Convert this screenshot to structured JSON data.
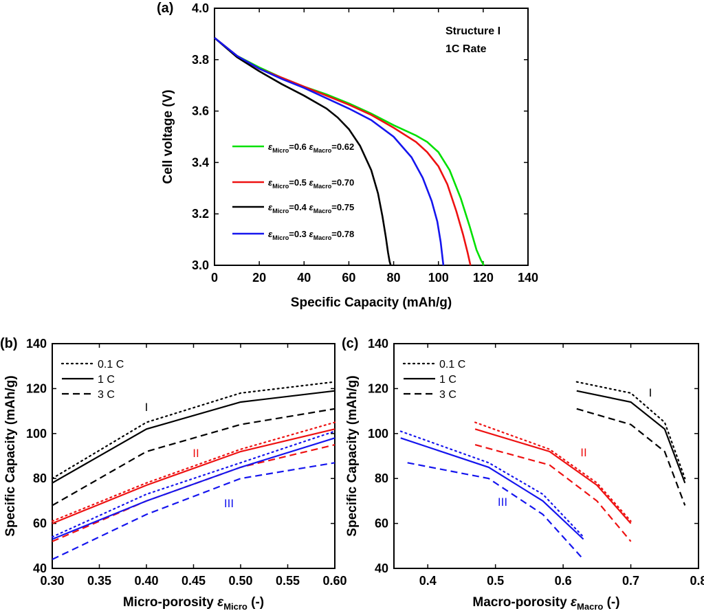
{
  "figure": {
    "panels": [
      {
        "id": "a",
        "label": "(a)",
        "xlabel": "Specific Capacity (mAh/g)",
        "ylabel": "Cell voltage (V)",
        "xlim": [
          0,
          140
        ],
        "ylim": [
          3.0,
          4.0
        ],
        "xticks": [
          "0",
          "20",
          "40",
          "60",
          "80",
          "100",
          "120",
          "140"
        ],
        "yticks": [
          "3.0",
          "3.2",
          "3.4",
          "3.6",
          "3.8",
          "4.0"
        ],
        "note_lines": [
          "Structure I",
          "1C Rate"
        ],
        "legend": [
          {
            "color": "#00e000",
            "micro": "0.6",
            "macro": "0.62"
          },
          {
            "color": "#ee1111",
            "micro": "0.5",
            "macro": "0.70"
          },
          {
            "color": "#000000",
            "micro": "0.4",
            "macro": "0.75"
          },
          {
            "color": "#1515ee",
            "micro": "0.3",
            "macro": "0.78"
          }
        ],
        "legend_symbol": "ε",
        "legend_sub_micro": "Micro",
        "legend_sub_macro": "Macro"
      },
      {
        "id": "b",
        "label": "(b)",
        "xlabel_main": "Micro-porosity ",
        "xlabel_symbol": "ε",
        "xlabel_sub": "Micro",
        "xlabel_tail": "  (-)",
        "ylabel": "Specific Capacity (mAh/g)",
        "xlim": [
          0.3,
          0.6
        ],
        "ylim": [
          40,
          140
        ],
        "xticks": [
          "0.30",
          "0.35",
          "0.40",
          "0.45",
          "0.50",
          "0.55",
          "0.60"
        ],
        "yticks": [
          "40",
          "60",
          "80",
          "100",
          "120",
          "140"
        ],
        "legend": [
          "0.1 C",
          "1 C",
          "3 C"
        ],
        "group_labels": [
          {
            "text": "I",
            "color": "#000000"
          },
          {
            "text": "II",
            "color": "#ee1111"
          },
          {
            "text": "III",
            "color": "#1515ee"
          }
        ]
      },
      {
        "id": "c",
        "label": "(c)",
        "xlabel_main": "Macro-porosity ",
        "xlabel_symbol": "ε",
        "xlabel_sub": "Macro",
        "xlabel_tail": " (-)",
        "ylabel": "Specific Capacity (mAh/g)",
        "xlim": [
          0.35,
          0.8
        ],
        "ylim": [
          40,
          140
        ],
        "xticks": [
          "0.4",
          "0.5",
          "0.6",
          "0.7",
          "0.8"
        ],
        "yticks": [
          "40",
          "60",
          "80",
          "100",
          "120",
          "140"
        ],
        "legend": [
          "0.1 C",
          "1 C",
          "3 C"
        ],
        "group_labels": [
          {
            "text": "I",
            "color": "#000000"
          },
          {
            "text": "II",
            "color": "#ee1111"
          },
          {
            "text": "III",
            "color": "#1515ee"
          }
        ]
      }
    ]
  },
  "chart_data": [
    {
      "panel": "a",
      "type": "line",
      "title": "",
      "xlabel": "Specific Capacity (mAh/g)",
      "ylabel": "Cell voltage (V)",
      "xlim": [
        0,
        140
      ],
      "ylim": [
        3.0,
        4.0
      ],
      "series": [
        {
          "name": "εMicro=0.6 εMacro=0.62",
          "color": "#00e000",
          "x": [
            0,
            10,
            20,
            30,
            40,
            50,
            60,
            70,
            80,
            90,
            95,
            100,
            105,
            110,
            114,
            117,
            119,
            120.3
          ],
          "y": [
            3.885,
            3.815,
            3.77,
            3.73,
            3.695,
            3.665,
            3.63,
            3.59,
            3.545,
            3.505,
            3.48,
            3.44,
            3.37,
            3.26,
            3.15,
            3.06,
            3.02,
            3.0
          ]
        },
        {
          "name": "εMicro=0.5 εMacro=0.70",
          "color": "#ee1111",
          "x": [
            0,
            10,
            20,
            30,
            40,
            50,
            60,
            70,
            80,
            90,
            95,
            100,
            104,
            108,
            111,
            113,
            114.3
          ],
          "y": [
            3.885,
            3.815,
            3.765,
            3.73,
            3.695,
            3.66,
            3.625,
            3.585,
            3.535,
            3.48,
            3.44,
            3.385,
            3.315,
            3.21,
            3.12,
            3.05,
            3.0
          ]
        },
        {
          "name": "εMicro=0.4 εMacro=0.75",
          "color": "#000000",
          "x": [
            0,
            10,
            20,
            30,
            40,
            50,
            55,
            60,
            65,
            70,
            73,
            75,
            76.5,
            77.5,
            78.2,
            78.7
          ],
          "y": [
            3.885,
            3.81,
            3.755,
            3.705,
            3.66,
            3.61,
            3.575,
            3.53,
            3.465,
            3.37,
            3.28,
            3.19,
            3.11,
            3.05,
            3.015,
            3.0
          ]
        },
        {
          "name": "εMicro=0.3 εMacro=0.78",
          "color": "#1515ee",
          "x": [
            0,
            10,
            20,
            30,
            40,
            50,
            60,
            70,
            80,
            88,
            93,
            97,
            99.5,
            101,
            101.8,
            102.2
          ],
          "y": [
            3.885,
            3.815,
            3.765,
            3.725,
            3.69,
            3.65,
            3.61,
            3.565,
            3.5,
            3.42,
            3.34,
            3.25,
            3.17,
            3.09,
            3.03,
            3.0
          ]
        }
      ]
    },
    {
      "panel": "b",
      "type": "line",
      "title": "",
      "xlabel": "Micro-porosity εMicro  (-)",
      "ylabel": "Specific Capacity (mAh/g)",
      "xlim": [
        0.3,
        0.6
      ],
      "ylim": [
        40,
        140
      ],
      "x": [
        0.3,
        0.4,
        0.5,
        0.6
      ],
      "series": [
        {
          "name": "I, 0.1 C",
          "group": "I",
          "rate": "0.1 C",
          "color": "#000000",
          "dash": "dot",
          "values": [
            80,
            105,
            118,
            123
          ]
        },
        {
          "name": "I, 1 C",
          "group": "I",
          "rate": "1 C",
          "color": "#000000",
          "dash": "solid",
          "values": [
            78,
            102,
            114,
            119
          ]
        },
        {
          "name": "I, 3 C",
          "group": "I",
          "rate": "3 C",
          "color": "#000000",
          "dash": "dash",
          "values": [
            68,
            92,
            104,
            111
          ]
        },
        {
          "name": "II, 0.1 C",
          "group": "II",
          "rate": "0.1 C",
          "color": "#ee1111",
          "dash": "dot",
          "values": [
            61,
            78,
            93,
            105
          ]
        },
        {
          "name": "II, 1 C",
          "group": "II",
          "rate": "1 C",
          "color": "#ee1111",
          "dash": "solid",
          "values": [
            60,
            77,
            92,
            102
          ]
        },
        {
          "name": "II, 3 C",
          "group": "II",
          "rate": "3 C",
          "color": "#ee1111",
          "dash": "dash",
          "values": [
            52,
            70,
            85,
            95
          ]
        },
        {
          "name": "III, 0.1 C",
          "group": "III",
          "rate": "0.1 C",
          "color": "#1515ee",
          "dash": "dot",
          "values": [
            54,
            73,
            87,
            101
          ]
        },
        {
          "name": "III, 1 C",
          "group": "III",
          "rate": "1 C",
          "color": "#1515ee",
          "dash": "solid",
          "values": [
            53,
            70,
            85,
            98
          ]
        },
        {
          "name": "III, 3 C",
          "group": "III",
          "rate": "3 C",
          "color": "#1515ee",
          "dash": "dash",
          "values": [
            44,
            64,
            80,
            87
          ]
        }
      ]
    },
    {
      "panel": "c",
      "type": "line",
      "title": "",
      "xlabel": "Macro-porosity εMacro (-)",
      "ylabel": "Specific Capacity (mAh/g)",
      "xlim": [
        0.35,
        0.8
      ],
      "ylim": [
        40,
        140
      ],
      "series": [
        {
          "name": "I, 0.1 C",
          "group": "I",
          "rate": "0.1 C",
          "color": "#000000",
          "dash": "dot",
          "x": [
            0.62,
            0.7,
            0.75,
            0.78
          ],
          "values": [
            123,
            118,
            105,
            80
          ]
        },
        {
          "name": "I, 1 C",
          "group": "I",
          "rate": "1 C",
          "color": "#000000",
          "dash": "solid",
          "x": [
            0.62,
            0.7,
            0.75,
            0.78
          ],
          "values": [
            119,
            114,
            102,
            78
          ]
        },
        {
          "name": "I, 3 C",
          "group": "I",
          "rate": "3 C",
          "color": "#000000",
          "dash": "dash",
          "x": [
            0.62,
            0.7,
            0.75,
            0.78
          ],
          "values": [
            111,
            104,
            92,
            68
          ]
        },
        {
          "name": "II, 0.1 C",
          "group": "II",
          "rate": "0.1 C",
          "color": "#ee1111",
          "dash": "dot",
          "x": [
            0.47,
            0.58,
            0.65,
            0.7
          ],
          "values": [
            105,
            93,
            78,
            61
          ]
        },
        {
          "name": "II, 1 C",
          "group": "II",
          "rate": "1 C",
          "color": "#ee1111",
          "dash": "solid",
          "x": [
            0.47,
            0.58,
            0.65,
            0.7
          ],
          "values": [
            102,
            92,
            77,
            60
          ]
        },
        {
          "name": "II, 3 C",
          "group": "II",
          "rate": "3 C",
          "color": "#ee1111",
          "dash": "dash",
          "x": [
            0.47,
            0.58,
            0.65,
            0.7
          ],
          "values": [
            95,
            86,
            70,
            52
          ]
        },
        {
          "name": "III, 0.1 C",
          "group": "III",
          "rate": "0.1 C",
          "color": "#1515ee",
          "dash": "dot",
          "x": [
            0.36,
            0.49,
            0.57,
            0.63
          ],
          "values": [
            101,
            87,
            73,
            54
          ]
        },
        {
          "name": "III, 1 C",
          "group": "III",
          "rate": "1 C",
          "color": "#1515ee",
          "dash": "solid",
          "x": [
            0.36,
            0.49,
            0.57,
            0.63
          ],
          "values": [
            98,
            85,
            70,
            53
          ]
        },
        {
          "name": "III, 3 C",
          "group": "III",
          "rate": "3 C",
          "color": "#1515ee",
          "dash": "dash",
          "x": [
            0.37,
            0.49,
            0.57,
            0.63
          ],
          "values": [
            87,
            80,
            64,
            44
          ]
        }
      ]
    }
  ]
}
